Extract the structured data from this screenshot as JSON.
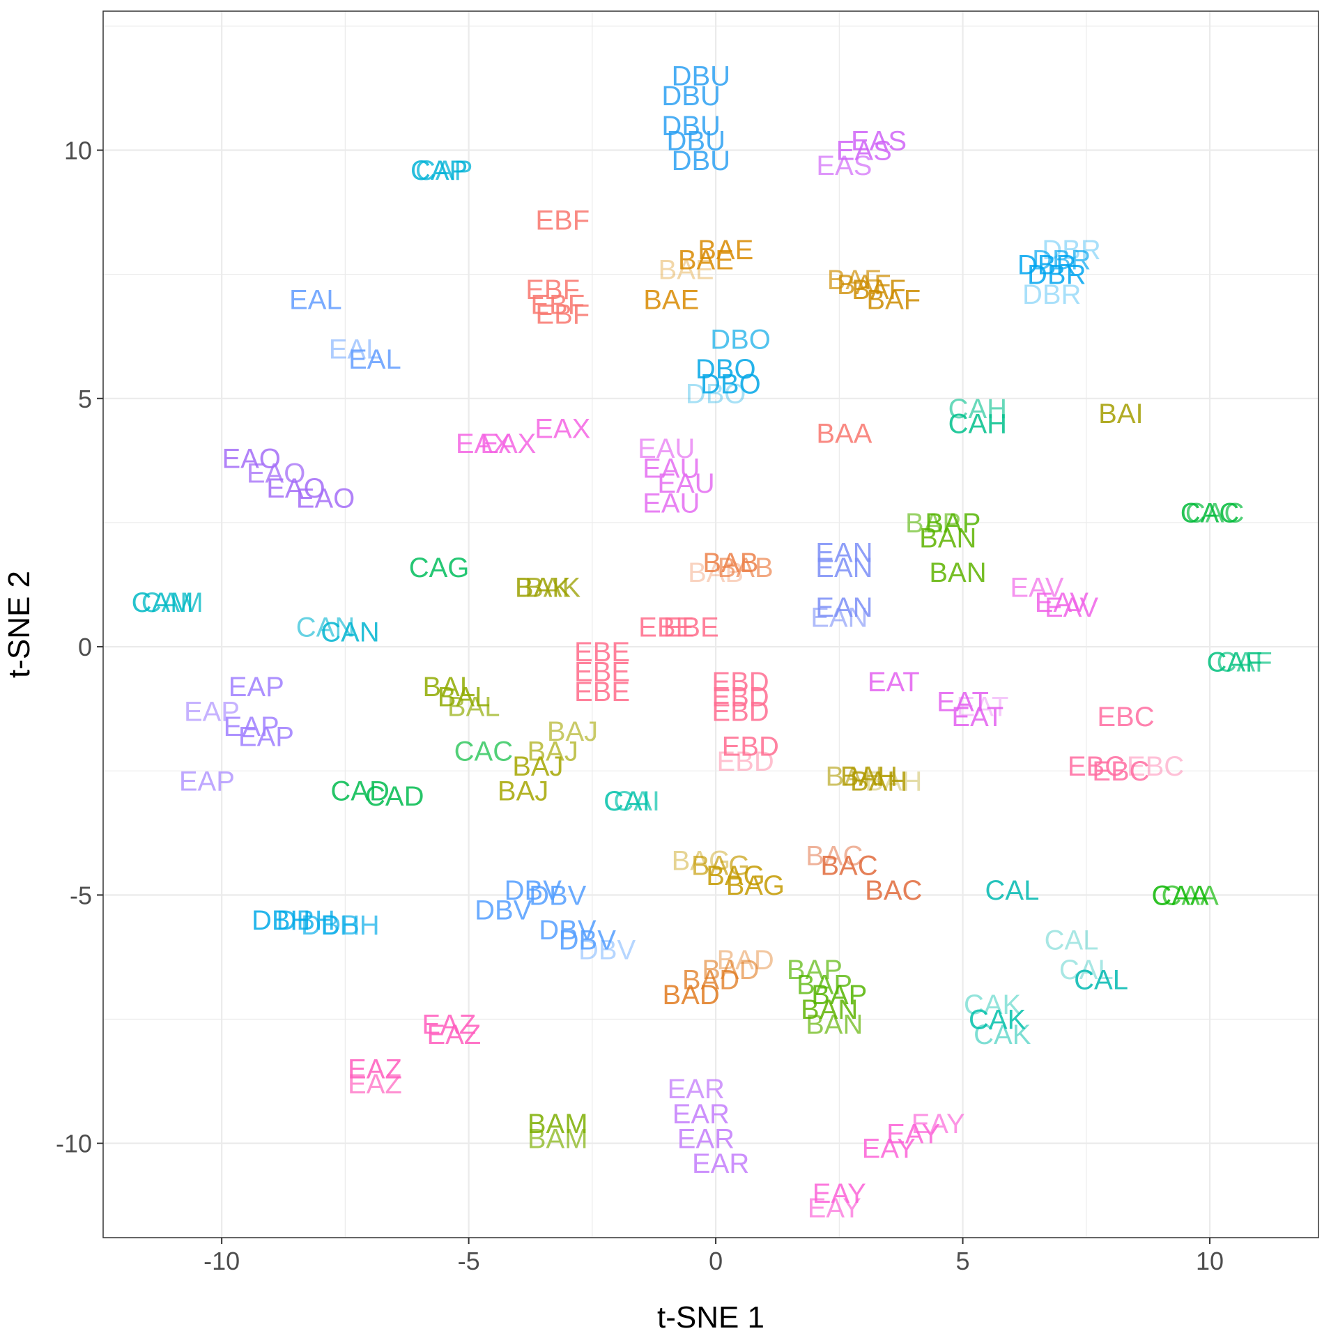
{
  "chart_data": {
    "type": "scatter",
    "marker": "text-label",
    "xlabel": "t-SNE 1",
    "ylabel": "t-SNE 2",
    "xlim": [
      -12.4,
      12.2
    ],
    "ylim": [
      -11.9,
      12.8
    ],
    "xticks": [
      -10,
      -5,
      0,
      5,
      10
    ],
    "yticks": [
      -10,
      -5,
      0,
      5,
      10
    ],
    "grid": true,
    "legend": "none",
    "series": [
      {
        "name": "BAA",
        "color": "#F8766D",
        "points": [
          [
            2.6,
            4.3,
            1
          ]
        ]
      },
      {
        "name": "BAB",
        "color": "#EC7F46",
        "points": [
          [
            0.3,
            1.7,
            1
          ],
          [
            0.6,
            1.6,
            0.8
          ],
          [
            0.0,
            1.5,
            0.4
          ]
        ]
      },
      {
        "name": "BAC",
        "color": "#E06A3B",
        "points": [
          [
            2.4,
            -4.2,
            0.6
          ],
          [
            2.7,
            -4.4,
            1
          ],
          [
            3.6,
            -4.9,
            1
          ]
        ]
      },
      {
        "name": "BAD",
        "color": "#E07A1F",
        "points": [
          [
            -0.5,
            -7.0,
            1
          ],
          [
            -0.1,
            -6.7,
            0.9
          ],
          [
            0.3,
            -6.5,
            0.7
          ],
          [
            0.6,
            -6.3,
            0.5
          ]
        ]
      },
      {
        "name": "BAE",
        "color": "#D88A00",
        "points": [
          [
            0.2,
            8.0,
            1
          ],
          [
            -0.2,
            7.8,
            1
          ],
          [
            -0.6,
            7.6,
            0.4
          ],
          [
            -0.9,
            7.0,
            1
          ]
        ]
      },
      {
        "name": "BAF",
        "color": "#CD8C00",
        "points": [
          [
            2.8,
            7.4,
            0.8
          ],
          [
            3.0,
            7.3,
            0.9
          ],
          [
            3.3,
            7.2,
            1
          ],
          [
            3.6,
            7.0,
            1
          ]
        ]
      },
      {
        "name": "BAG",
        "color": "#C49A00",
        "points": [
          [
            -0.3,
            -4.3,
            0.5
          ],
          [
            0.1,
            -4.4,
            0.8
          ],
          [
            0.4,
            -4.6,
            1
          ],
          [
            0.8,
            -4.8,
            1
          ]
        ]
      },
      {
        "name": "BAH",
        "color": "#AF9A00",
        "points": [
          [
            2.8,
            -2.6,
            0.7
          ],
          [
            3.1,
            -2.6,
            1
          ],
          [
            3.3,
            -2.7,
            1
          ],
          [
            3.6,
            -2.7,
            0.4
          ]
        ]
      },
      {
        "name": "BAI",
        "color": "#A39E00",
        "points": [
          [
            8.2,
            4.7,
            1
          ]
        ]
      },
      {
        "name": "BAJ",
        "color": "#A4A600",
        "points": [
          [
            -2.9,
            -1.7,
            0.7
          ],
          [
            -3.3,
            -2.1,
            0.8
          ],
          [
            -3.6,
            -2.4,
            1
          ],
          [
            -3.9,
            -2.9,
            1
          ]
        ]
      },
      {
        "name": "BAK",
        "color": "#9AA000",
        "points": [
          [
            -3.5,
            1.2,
            1
          ],
          [
            -3.3,
            1.2,
            0.9
          ]
        ]
      },
      {
        "name": "BAL",
        "color": "#8FAA00",
        "points": [
          [
            -5.4,
            -0.8,
            1
          ],
          [
            -5.1,
            -1.0,
            1
          ],
          [
            -4.9,
            -1.2,
            0.8
          ]
        ]
      },
      {
        "name": "BAM",
        "color": "#7CAE00",
        "points": [
          [
            -3.2,
            -9.6,
            1
          ],
          [
            -3.2,
            -9.9,
            0.8
          ]
        ]
      },
      {
        "name": "BAN",
        "color": "#5EB300",
        "points": [
          [
            4.7,
            2.2,
            1
          ],
          [
            4.9,
            1.5,
            1
          ],
          [
            2.3,
            -7.3,
            1
          ],
          [
            2.4,
            -7.6,
            0.8
          ]
        ]
      },
      {
        "name": "BAP",
        "color": "#53B400",
        "points": [
          [
            4.4,
            2.5,
            0.7
          ],
          [
            4.8,
            2.5,
            1
          ],
          [
            2.0,
            -6.5,
            0.8
          ],
          [
            2.2,
            -6.8,
            0.9
          ],
          [
            2.5,
            -7.0,
            1
          ]
        ]
      },
      {
        "name": "CAA",
        "color": "#0CB702",
        "points": [
          [
            9.4,
            -5.0,
            1
          ],
          [
            9.6,
            -5.0,
            0.8
          ]
        ]
      },
      {
        "name": "CAC",
        "color": "#00BA38",
        "points": [
          [
            -4.7,
            -2.1,
            0.8
          ],
          [
            10.0,
            2.7,
            1
          ],
          [
            10.1,
            2.7,
            0.8
          ]
        ]
      },
      {
        "name": "CAD",
        "color": "#00BB4E",
        "points": [
          [
            -7.2,
            -2.9,
            1
          ],
          [
            -6.5,
            -3.0,
            1
          ]
        ]
      },
      {
        "name": "CAF",
        "color": "#00BF7D",
        "points": [
          [
            10.5,
            -0.3,
            1
          ],
          [
            10.7,
            -0.3,
            0.8
          ]
        ]
      },
      {
        "name": "CAG",
        "color": "#00BD5C",
        "points": [
          [
            -5.6,
            1.6,
            1
          ]
        ]
      },
      {
        "name": "CAH",
        "color": "#00C08B",
        "points": [
          [
            5.3,
            4.8,
            0.7
          ],
          [
            5.3,
            4.5,
            1
          ]
        ]
      },
      {
        "name": "CAI",
        "color": "#00C1A9",
        "points": [
          [
            -1.8,
            -3.1,
            1
          ],
          [
            -1.6,
            -3.1,
            0.8
          ]
        ]
      },
      {
        "name": "CAK",
        "color": "#00BFA9",
        "points": [
          [
            5.6,
            -7.2,
            0.5
          ],
          [
            5.7,
            -7.5,
            1
          ],
          [
            5.8,
            -7.8,
            0.6
          ]
        ]
      },
      {
        "name": "CAL",
        "color": "#00B8B0",
        "points": [
          [
            6.0,
            -4.9,
            1
          ],
          [
            7.2,
            -5.9,
            0.4
          ],
          [
            7.5,
            -6.5,
            0.4
          ],
          [
            7.8,
            -6.7,
            1
          ]
        ]
      },
      {
        "name": "CAM",
        "color": "#00B9C4",
        "points": [
          [
            -11.2,
            0.9,
            1
          ],
          [
            -11.0,
            0.9,
            0.9
          ]
        ]
      },
      {
        "name": "CAN",
        "color": "#00B4D0",
        "points": [
          [
            -7.9,
            0.4,
            0.7
          ],
          [
            -7.4,
            0.3,
            1
          ]
        ]
      },
      {
        "name": "CAP",
        "color": "#00B2D6",
        "points": [
          [
            -5.6,
            9.6,
            1
          ],
          [
            -5.5,
            9.6,
            0.9
          ]
        ]
      },
      {
        "name": "DBH",
        "color": "#00A9E8",
        "points": [
          [
            -8.8,
            -5.5,
            1
          ],
          [
            -8.3,
            -5.5,
            0.9
          ],
          [
            -7.8,
            -5.6,
            0.8
          ],
          [
            -7.4,
            -5.6,
            0.8
          ]
        ]
      },
      {
        "name": "DBO",
        "color": "#00A6E6",
        "points": [
          [
            0.5,
            6.2,
            0.8
          ],
          [
            0.2,
            5.6,
            1
          ],
          [
            0.3,
            5.3,
            1
          ],
          [
            0.0,
            5.1,
            0.4
          ]
        ]
      },
      {
        "name": "DBR",
        "color": "#00A5F0",
        "points": [
          [
            6.7,
            7.7,
            1
          ],
          [
            7.0,
            7.8,
            0.8
          ],
          [
            6.9,
            7.5,
            1
          ],
          [
            6.8,
            7.1,
            0.4
          ],
          [
            7.2,
            8.0,
            0.4
          ]
        ]
      },
      {
        "name": "DBU",
        "color": "#2BA0F2",
        "points": [
          [
            -0.3,
            11.5,
            1
          ],
          [
            -0.5,
            11.1,
            1
          ],
          [
            -0.5,
            10.5,
            1
          ],
          [
            -0.4,
            10.2,
            1
          ],
          [
            -0.3,
            9.8,
            1
          ]
        ]
      },
      {
        "name": "DBV",
        "color": "#529EFF",
        "points": [
          [
            -3.7,
            -4.9,
            1
          ],
          [
            -3.2,
            -5.0,
            1
          ],
          [
            -4.3,
            -5.3,
            1
          ],
          [
            -3.0,
            -5.7,
            1
          ],
          [
            -2.6,
            -5.9,
            1
          ],
          [
            -2.2,
            -6.1,
            0.5
          ]
        ]
      },
      {
        "name": "EAL",
        "color": "#619CFF",
        "points": [
          [
            -8.1,
            7.0,
            1
          ],
          [
            -7.3,
            6.0,
            0.6
          ],
          [
            -6.9,
            5.8,
            1
          ]
        ]
      },
      {
        "name": "EAN",
        "color": "#7B8EF7",
        "points": [
          [
            2.6,
            1.9,
            1
          ],
          [
            2.6,
            1.6,
            1
          ],
          [
            2.6,
            0.8,
            1
          ],
          [
            2.5,
            0.6,
            0.7
          ]
        ]
      },
      {
        "name": "EAO",
        "color": "#A36CF7",
        "points": [
          [
            -9.4,
            3.8,
            1
          ],
          [
            -8.9,
            3.5,
            0.9
          ],
          [
            -8.5,
            3.2,
            1
          ],
          [
            -7.9,
            3.0,
            1
          ]
        ]
      },
      {
        "name": "EAP",
        "color": "#9F7EFF",
        "points": [
          [
            -9.3,
            -0.8,
            1
          ],
          [
            -10.2,
            -1.3,
            0.7
          ],
          [
            -9.4,
            -1.6,
            1
          ],
          [
            -9.1,
            -1.8,
            1
          ],
          [
            -10.3,
            -2.7,
            0.8
          ]
        ]
      },
      {
        "name": "EAR",
        "color": "#C37CFB",
        "points": [
          [
            -0.4,
            -8.9,
            0.9
          ],
          [
            -0.3,
            -9.4,
            1
          ],
          [
            -0.2,
            -9.9,
            1
          ],
          [
            0.1,
            -10.4,
            1
          ]
        ]
      },
      {
        "name": "EAS",
        "color": "#CF63F7",
        "points": [
          [
            2.6,
            9.7,
            0.8
          ],
          [
            3.0,
            10.0,
            1
          ],
          [
            3.3,
            10.2,
            1
          ]
        ]
      },
      {
        "name": "EAT",
        "color": "#E35FF0",
        "points": [
          [
            3.6,
            -0.7,
            1
          ],
          [
            5.0,
            -1.1,
            1
          ],
          [
            5.3,
            -1.4,
            1
          ],
          [
            5.4,
            -1.2,
            0.4
          ]
        ]
      },
      {
        "name": "EAU",
        "color": "#E46CF1",
        "points": [
          [
            -1.0,
            4.0,
            0.8
          ],
          [
            -0.9,
            3.6,
            1
          ],
          [
            -0.6,
            3.3,
            1
          ],
          [
            -0.9,
            2.9,
            1
          ]
        ]
      },
      {
        "name": "EAV",
        "color": "#F063E8",
        "points": [
          [
            6.5,
            1.2,
            0.8
          ],
          [
            7.0,
            0.9,
            1
          ],
          [
            7.2,
            0.8,
            1
          ]
        ]
      },
      {
        "name": "EAX",
        "color": "#F564E3",
        "points": [
          [
            -4.7,
            4.1,
            1
          ],
          [
            -4.2,
            4.1,
            1
          ],
          [
            -3.1,
            4.4,
            1
          ]
        ]
      },
      {
        "name": "EAY",
        "color": "#FB61D7",
        "points": [
          [
            3.5,
            -10.1,
            1
          ],
          [
            4.0,
            -9.8,
            1
          ],
          [
            4.5,
            -9.6,
            0.8
          ],
          [
            2.5,
            -11.0,
            1
          ],
          [
            2.4,
            -11.3,
            0.8
          ]
        ]
      },
      {
        "name": "EAZ",
        "color": "#FF5CBD",
        "points": [
          [
            -5.4,
            -7.6,
            1
          ],
          [
            -5.3,
            -7.8,
            1
          ],
          [
            -6.9,
            -8.5,
            1
          ],
          [
            -6.9,
            -8.8,
            0.8
          ]
        ]
      },
      {
        "name": "EBC",
        "color": "#FF6BA0",
        "points": [
          [
            8.3,
            -1.4,
            1
          ],
          [
            7.7,
            -2.4,
            1
          ],
          [
            8.2,
            -2.5,
            1
          ],
          [
            8.9,
            -2.4,
            0.5
          ]
        ]
      },
      {
        "name": "EBD",
        "color": "#FF6C91",
        "points": [
          [
            0.5,
            -0.7,
            1
          ],
          [
            0.5,
            -1.0,
            1
          ],
          [
            0.5,
            -1.3,
            1
          ],
          [
            0.7,
            -2.0,
            1
          ],
          [
            0.6,
            -2.3,
            0.5
          ]
        ]
      },
      {
        "name": "EBE",
        "color": "#FF6B8A",
        "points": [
          [
            -1.0,
            0.4,
            1
          ],
          [
            -0.5,
            0.4,
            1
          ],
          [
            -2.3,
            -0.1,
            1
          ],
          [
            -2.3,
            -0.5,
            1
          ],
          [
            -2.3,
            -0.9,
            1
          ]
        ]
      },
      {
        "name": "EBF",
        "color": "#F8766D",
        "points": [
          [
            -3.1,
            8.6,
            1
          ],
          [
            -3.3,
            7.2,
            1
          ],
          [
            -3.2,
            6.9,
            1
          ],
          [
            -3.1,
            6.7,
            1
          ]
        ]
      }
    ]
  }
}
